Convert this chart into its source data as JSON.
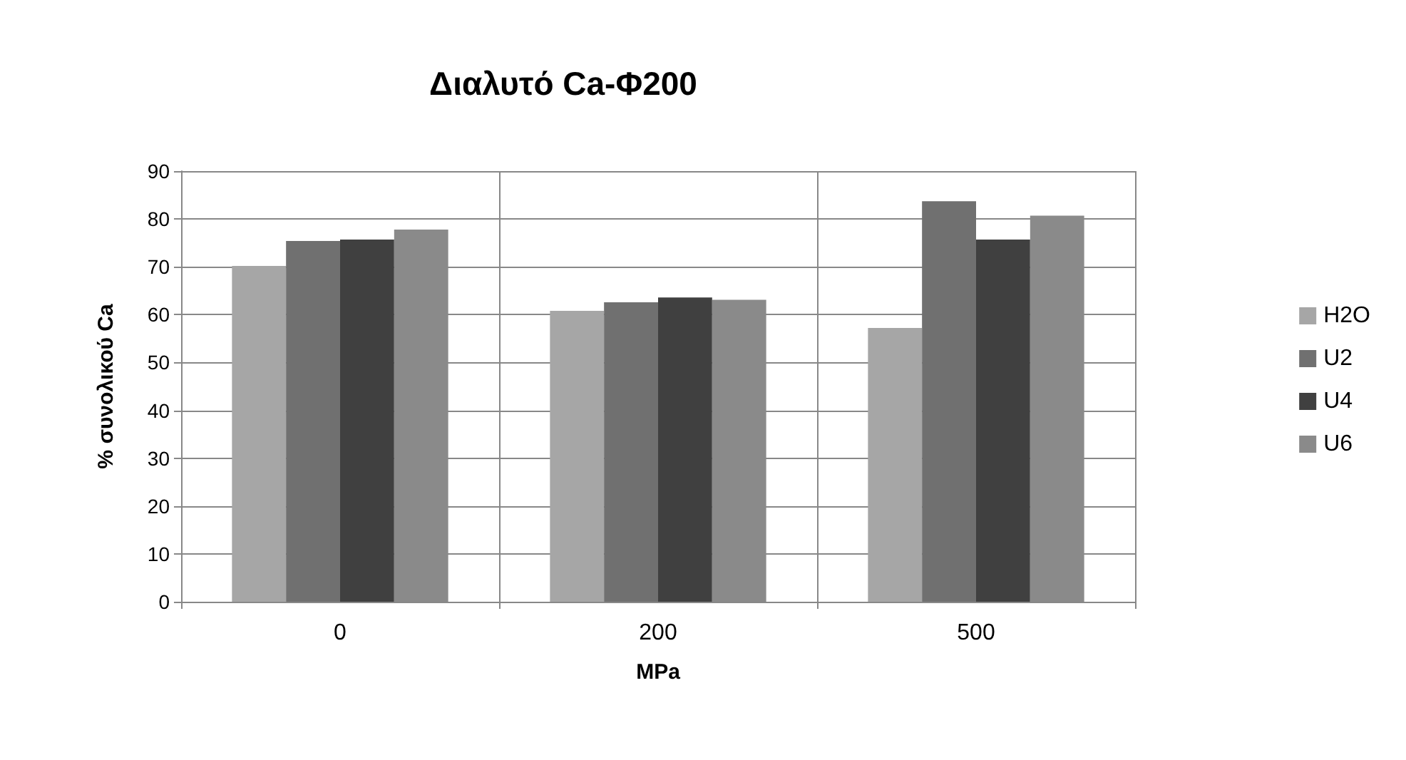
{
  "chart_data": {
    "type": "bar",
    "title": "Διαλυτό Ca-Φ200",
    "xlabel": "MPa",
    "ylabel": "% συνολικού Ca",
    "categories": [
      "0",
      "200",
      "500"
    ],
    "series": [
      {
        "name": "H2O",
        "color": "#a6a6a6",
        "values": [
          70.2,
          60.8,
          57.2
        ]
      },
      {
        "name": "U2",
        "color": "#707070",
        "values": [
          75.4,
          62.6,
          83.7
        ]
      },
      {
        "name": "U4",
        "color": "#404040",
        "values": [
          75.7,
          63.6,
          75.7
        ]
      },
      {
        "name": "U6",
        "color": "#8a8a8a",
        "values": [
          77.8,
          63.1,
          80.7
        ]
      }
    ],
    "ylim": [
      0,
      90
    ],
    "yticks": [
      0,
      10,
      20,
      30,
      40,
      50,
      60,
      70,
      80,
      90
    ],
    "grid": true,
    "legend": "right"
  }
}
